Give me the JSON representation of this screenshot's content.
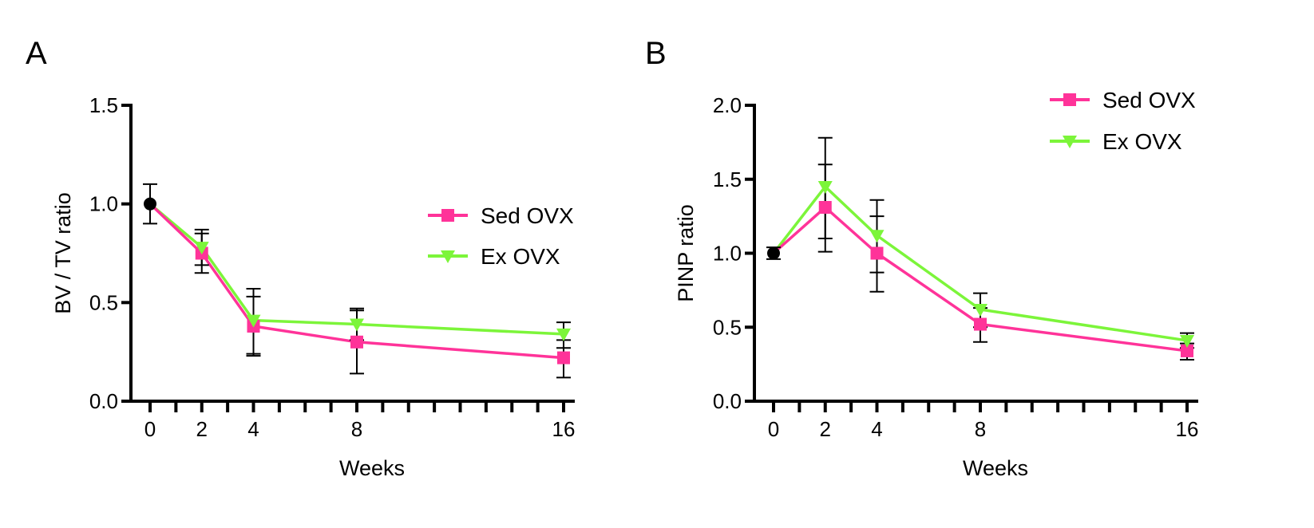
{
  "colors": {
    "sed": "#ff3399",
    "ex": "#7cf53a",
    "baseline": "#000000"
  },
  "legend": {
    "series": [
      "Sed OVX",
      "Ex OVX"
    ]
  },
  "chart_data": [
    {
      "type": "line",
      "panel": "A",
      "xlabel": "Weeks",
      "ylabel": "BV / TV ratio",
      "xlim": [
        -1,
        16.6
      ],
      "ylim": [
        0,
        1.5
      ],
      "xticks": [
        "0",
        "2",
        "4",
        "8",
        "16"
      ],
      "yticks": [
        "0.0",
        "0.5",
        "1.0",
        "1.5"
      ],
      "minor_x_ticks": [
        0,
        1,
        2,
        3,
        4,
        5,
        6,
        7,
        8,
        9,
        10,
        11,
        12,
        13,
        14,
        15,
        16
      ],
      "baseline": {
        "x": 0,
        "y": 1.0,
        "err": [
          0.9,
          1.1
        ]
      },
      "legend_position": "right-middle",
      "series": [
        {
          "name": "Sed OVX",
          "marker": "square",
          "points": [
            {
              "x": 0,
              "y": 1.0
            },
            {
              "x": 2,
              "y": 0.75,
              "err": [
                0.65,
                0.85
              ]
            },
            {
              "x": 4,
              "y": 0.38,
              "err": [
                0.23,
                0.53
              ]
            },
            {
              "x": 8,
              "y": 0.3,
              "err": [
                0.14,
                0.46
              ]
            },
            {
              "x": 16,
              "y": 0.22,
              "err": [
                0.12,
                0.31
              ]
            }
          ]
        },
        {
          "name": "Ex OVX",
          "marker": "triangle-down",
          "points": [
            {
              "x": 0,
              "y": 1.0
            },
            {
              "x": 2,
              "y": 0.78,
              "err": [
                0.69,
                0.87
              ]
            },
            {
              "x": 4,
              "y": 0.41,
              "err": [
                0.24,
                0.57
              ]
            },
            {
              "x": 8,
              "y": 0.39,
              "err": [
                0.31,
                0.47
              ]
            },
            {
              "x": 16,
              "y": 0.34,
              "err": [
                0.27,
                0.4
              ]
            }
          ]
        }
      ]
    },
    {
      "type": "line",
      "panel": "B",
      "xlabel": "Weeks",
      "ylabel": "PINP ratio",
      "xlim": [
        -1,
        16.6
      ],
      "ylim": [
        0,
        2.0
      ],
      "xticks": [
        "0",
        "2",
        "4",
        "8",
        "16"
      ],
      "yticks": [
        "0.0",
        "0.5",
        "1.0",
        "1.5",
        "2.0"
      ],
      "minor_x_ticks": [
        0,
        1,
        2,
        3,
        4,
        5,
        6,
        7,
        8,
        9,
        10,
        11,
        12,
        13,
        14,
        15,
        16
      ],
      "baseline": {
        "x": 0,
        "y": 1.0,
        "err": [
          0.96,
          1.04
        ]
      },
      "legend_position": "top-right",
      "series": [
        {
          "name": "Sed OVX",
          "marker": "square",
          "points": [
            {
              "x": 0,
              "y": 1.0
            },
            {
              "x": 2,
              "y": 1.31,
              "err": [
                1.01,
                1.6
              ]
            },
            {
              "x": 4,
              "y": 1.0,
              "err": [
                0.74,
                1.25
              ]
            },
            {
              "x": 8,
              "y": 0.52,
              "err": [
                0.4,
                0.63
              ]
            },
            {
              "x": 16,
              "y": 0.34,
              "err": [
                0.28,
                0.39
              ]
            }
          ]
        },
        {
          "name": "Ex OVX",
          "marker": "triangle-down",
          "points": [
            {
              "x": 0,
              "y": 1.0
            },
            {
              "x": 2,
              "y": 1.45,
              "err": [
                1.1,
                1.78
              ]
            },
            {
              "x": 4,
              "y": 1.12,
              "err": [
                0.87,
                1.36
              ]
            },
            {
              "x": 8,
              "y": 0.62,
              "err": [
                0.5,
                0.73
              ]
            },
            {
              "x": 16,
              "y": 0.41,
              "err": [
                0.36,
                0.46
              ]
            }
          ]
        }
      ]
    }
  ]
}
